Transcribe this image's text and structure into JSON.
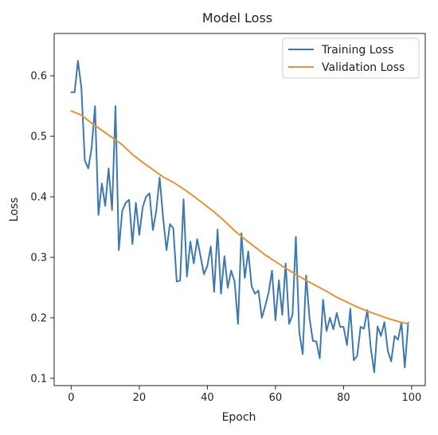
{
  "chart_data": {
    "type": "line",
    "title": "Model Loss",
    "xlabel": "Epoch",
    "ylabel": "Loss",
    "xlim": [
      -5,
      104
    ],
    "ylim": [
      0.088,
      0.67
    ],
    "xticks": [
      0,
      20,
      40,
      60,
      80,
      100
    ],
    "yticks": [
      0.1,
      0.2,
      0.3,
      0.4,
      0.5,
      0.6
    ],
    "grid": false,
    "legend_position": "top-right",
    "series": [
      {
        "name": "Training Loss",
        "color": "#3c79b0",
        "x": [
          0,
          1,
          2,
          3,
          4,
          5,
          6,
          7,
          8,
          9,
          10,
          11,
          12,
          13,
          14,
          15,
          16,
          17,
          18,
          19,
          20,
          21,
          22,
          23,
          24,
          25,
          26,
          27,
          28,
          29,
          30,
          31,
          32,
          33,
          34,
          35,
          36,
          37,
          38,
          39,
          40,
          41,
          42,
          43,
          44,
          45,
          46,
          47,
          48,
          49,
          50,
          51,
          52,
          53,
          54,
          55,
          56,
          57,
          58,
          59,
          60,
          61,
          62,
          63,
          64,
          65,
          66,
          67,
          68,
          69,
          70,
          71,
          72,
          73,
          74,
          75,
          76,
          77,
          78,
          79,
          80,
          81,
          82,
          83,
          84,
          85,
          86,
          87,
          88,
          89,
          90,
          91,
          92,
          93,
          94,
          95,
          96,
          97,
          98,
          99
        ],
        "y": [
          0.573,
          0.573,
          0.625,
          0.58,
          0.46,
          0.447,
          0.48,
          0.55,
          0.37,
          0.422,
          0.385,
          0.447,
          0.378,
          0.55,
          0.312,
          0.377,
          0.39,
          0.395,
          0.322,
          0.39,
          0.337,
          0.383,
          0.4,
          0.406,
          0.345,
          0.378,
          0.432,
          0.365,
          0.312,
          0.355,
          0.348,
          0.26,
          0.262,
          0.396,
          0.268,
          0.326,
          0.29,
          0.33,
          0.302,
          0.272,
          0.286,
          0.318,
          0.243,
          0.346,
          0.24,
          0.302,
          0.25,
          0.278,
          0.26,
          0.19,
          0.34,
          0.266,
          0.31,
          0.252,
          0.24,
          0.245,
          0.2,
          0.22,
          0.242,
          0.278,
          0.196,
          0.262,
          0.205,
          0.29,
          0.19,
          0.205,
          0.334,
          0.176,
          0.14,
          0.27,
          0.2,
          0.162,
          0.161,
          0.133,
          0.23,
          0.178,
          0.2,
          0.181,
          0.208,
          0.185,
          0.185,
          0.155,
          0.215,
          0.13,
          0.137,
          0.185,
          0.182,
          0.213,
          0.15,
          0.11,
          0.186,
          0.17,
          0.193,
          0.145,
          0.128,
          0.17,
          0.164,
          0.192,
          0.118,
          0.192
        ]
      },
      {
        "name": "Validation Loss",
        "color": "#e39338",
        "x": [
          0,
          3,
          6,
          9,
          12,
          15,
          18,
          21,
          24,
          27,
          30,
          33,
          36,
          39,
          42,
          45,
          48,
          51,
          54,
          57,
          60,
          63,
          66,
          69,
          72,
          75,
          78,
          81,
          84,
          87,
          90,
          93,
          96,
          99
        ],
        "y": [
          0.542,
          0.535,
          0.522,
          0.51,
          0.498,
          0.486,
          0.47,
          0.457,
          0.445,
          0.433,
          0.424,
          0.413,
          0.401,
          0.388,
          0.375,
          0.36,
          0.344,
          0.33,
          0.317,
          0.304,
          0.293,
          0.282,
          0.272,
          0.262,
          0.253,
          0.244,
          0.234,
          0.226,
          0.218,
          0.211,
          0.205,
          0.199,
          0.194,
          0.19
        ]
      }
    ]
  }
}
